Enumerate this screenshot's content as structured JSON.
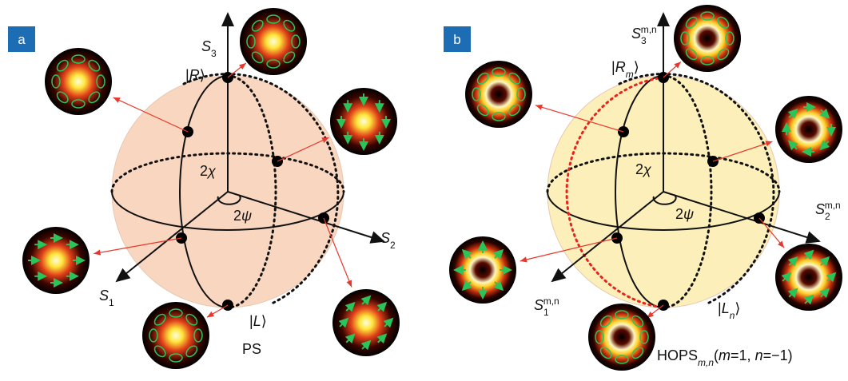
{
  "panels": [
    {
      "tag": "a",
      "labels": {
        "s3": [
          {
            "text": "S",
            "style": "italic"
          },
          {
            "text": "3",
            "style": "sub"
          }
        ],
        "r": [
          {
            "text": "|"
          },
          {
            "text": "R",
            "style": "italic"
          },
          {
            "text": "⟩"
          }
        ],
        "chi": [
          {
            "text": "2"
          },
          {
            "text": "χ",
            "style": "italic"
          }
        ],
        "psi": [
          {
            "text": "2"
          },
          {
            "text": "ψ",
            "style": "italic"
          }
        ],
        "s2": [
          {
            "text": "S",
            "style": "italic"
          },
          {
            "text": "2",
            "style": "sub"
          }
        ],
        "s1": [
          {
            "text": "S",
            "style": "italic"
          },
          {
            "text": "1",
            "style": "sub"
          }
        ],
        "l": [
          {
            "text": "|"
          },
          {
            "text": "L",
            "style": "italic"
          },
          {
            "text": "⟩"
          }
        ],
        "caption": [
          {
            "text": "PS"
          }
        ]
      }
    },
    {
      "tag": "b",
      "labels": {
        "s3": [
          {
            "text": "S",
            "style": "italic"
          },
          {
            "text": "3",
            "style": "sub"
          },
          {
            "text": "m,n",
            "style": "sup"
          }
        ],
        "r": [
          {
            "text": "|"
          },
          {
            "text": "R",
            "style": "italic"
          },
          {
            "text": "m",
            "style": "sub-italic"
          },
          {
            "text": "⟩"
          }
        ],
        "chi": [
          {
            "text": "2"
          },
          {
            "text": "χ",
            "style": "italic"
          }
        ],
        "psi": [
          {
            "text": "2"
          },
          {
            "text": "ψ",
            "style": "italic"
          }
        ],
        "s2": [
          {
            "text": "S",
            "style": "italic"
          },
          {
            "text": "2",
            "style": "sub"
          },
          {
            "text": "m,n",
            "style": "sup"
          }
        ],
        "s1": [
          {
            "text": "S",
            "style": "italic"
          },
          {
            "text": "1",
            "style": "sub"
          },
          {
            "text": "m,n",
            "style": "sup"
          }
        ],
        "l": [
          {
            "text": "|"
          },
          {
            "text": "L",
            "style": "italic"
          },
          {
            "text": "n",
            "style": "sub-italic"
          },
          {
            "text": "⟩"
          }
        ],
        "caption": [
          {
            "text": "HOPS"
          },
          {
            "text": "m,n",
            "style": "sub-italic"
          },
          {
            "text": "("
          },
          {
            "text": "m",
            "style": "italic"
          },
          {
            "text": "=1, "
          },
          {
            "text": "n",
            "style": "italic"
          },
          {
            "text": "=−1)"
          }
        ]
      }
    }
  ]
}
